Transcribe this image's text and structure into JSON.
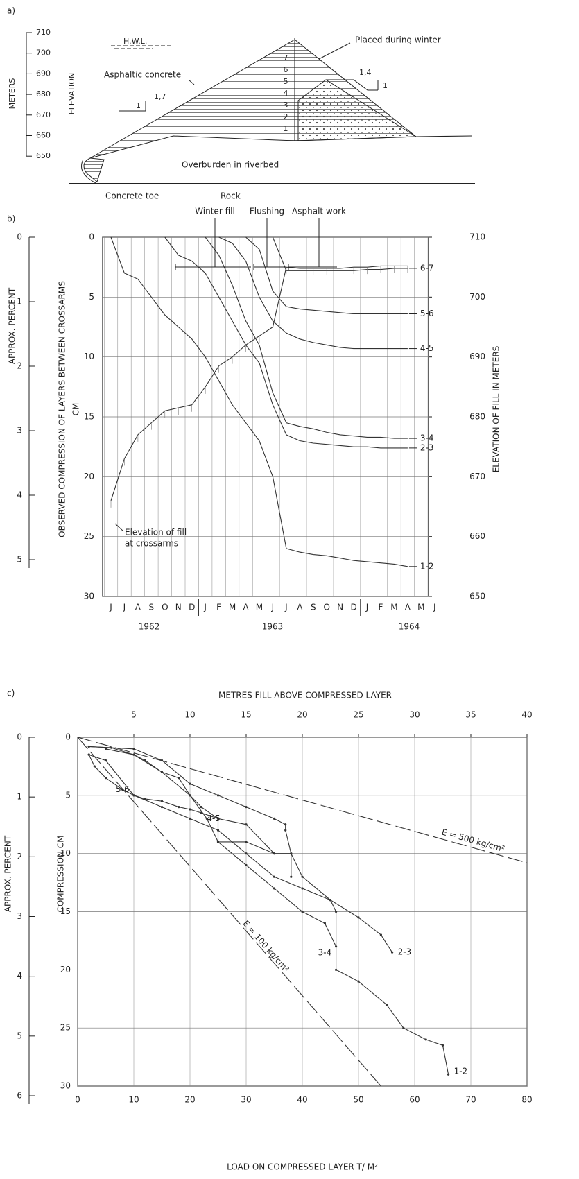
{
  "panel_a": {
    "label": "a)",
    "axis_label_1": "METERS",
    "axis_label_2": "ELEVATION",
    "ticks": [
      710,
      700,
      690,
      680,
      670,
      660,
      650
    ],
    "hwl": "H.W.L.",
    "winter": "Placed during winter",
    "asphalt": "Asphaltic concrete",
    "slope_up": "1,7",
    "slope_up_base": "1",
    "slope_down": "1,4",
    "slope_down_base": "1",
    "layers": [
      "1",
      "2",
      "3",
      "4",
      "5",
      "6",
      "7"
    ],
    "overburden": "Overburden in riverbed",
    "toe": "Concrete toe",
    "rock": "Rock"
  },
  "chart_data": [
    {
      "type": "line",
      "panel_label": "b)",
      "y_label": "OBSERVED COMPRESSION OF LAYERS BETWEEN CROSSARMS",
      "y_unit": "CM",
      "y2_label": "ELEVATION OF FILL IN METERS",
      "percent_axis": {
        "label": "APPROX. PERCENT",
        "lim": [
          0,
          5
        ],
        "ticks": [
          0,
          1,
          2,
          3,
          4,
          5
        ]
      },
      "annotations": [
        "Winter fill",
        "Flushing",
        "Asphalt work",
        "Elevation of fill",
        "at crossarms"
      ],
      "categories": [
        "J",
        "J",
        "A",
        "S",
        "O",
        "N",
        "D",
        "J",
        "F",
        "M",
        "A",
        "M",
        "J",
        "J",
        "A",
        "S",
        "O",
        "N",
        "D",
        "J",
        "F",
        "M",
        "A",
        "M",
        "J"
      ],
      "x_group_labels": [
        "1962",
        "1963",
        "1964"
      ],
      "ylim": [
        0,
        30
      ],
      "yticks": [
        0,
        5,
        10,
        15,
        20,
        25,
        30
      ],
      "y_reversed": true,
      "y2lim": [
        650,
        710
      ],
      "y2ticks": [
        650,
        660,
        670,
        680,
        690,
        700,
        710
      ],
      "grid": true,
      "series": [
        {
          "name": "6-7",
          "color": "#333333",
          "values": [
            null,
            null,
            null,
            null,
            null,
            null,
            null,
            null,
            null,
            null,
            null,
            null,
            0,
            2.8,
            2.8,
            2.8,
            2.8,
            2.8,
            2.8,
            2.7,
            2.7,
            2.6,
            2.6,
            null,
            null
          ]
        },
        {
          "name": "5-6",
          "color": "#333333",
          "values": [
            null,
            null,
            null,
            null,
            null,
            null,
            null,
            null,
            null,
            null,
            0,
            1,
            4.5,
            5.8,
            6,
            6.1,
            6.2,
            6.3,
            6.4,
            6.4,
            6.4,
            6.4,
            6.4,
            null,
            null
          ]
        },
        {
          "name": "4-5",
          "color": "#333333",
          "values": [
            null,
            null,
            null,
            null,
            null,
            null,
            null,
            null,
            0,
            0.5,
            2,
            5,
            7,
            8,
            8.5,
            8.8,
            9,
            9.2,
            9.3,
            9.3,
            9.3,
            9.3,
            9.3,
            null,
            null
          ]
        },
        {
          "name": "3-4",
          "color": "#333333",
          "values": [
            null,
            null,
            null,
            null,
            null,
            null,
            null,
            0,
            1.5,
            4,
            7,
            9,
            13,
            15.5,
            15.8,
            16,
            16.3,
            16.5,
            16.6,
            16.7,
            16.7,
            16.8,
            16.8,
            null,
            null
          ]
        },
        {
          "name": "2-3",
          "color": "#333333",
          "values": [
            null,
            null,
            null,
            null,
            0,
            1.5,
            2,
            3,
            5,
            7,
            9,
            10.5,
            14,
            16.5,
            17,
            17.2,
            17.3,
            17.4,
            17.5,
            17.5,
            17.6,
            17.6,
            17.6,
            null,
            null
          ]
        },
        {
          "name": "1-2",
          "color": "#333333",
          "values": [
            0,
            3,
            3.5,
            5,
            6.5,
            7.5,
            8.5,
            10,
            12,
            14,
            15.5,
            17,
            20,
            26,
            26.3,
            26.5,
            26.6,
            26.8,
            27,
            27.1,
            27.2,
            27.3,
            27.5,
            null,
            null
          ]
        },
        {
          "color": "#333333",
          "axis": "y2",
          "values": [
            666,
            673,
            677,
            679,
            681,
            681.5,
            682,
            685,
            688.5,
            690,
            692,
            693.5,
            695,
            705,
            704.8,
            704.8,
            704.8,
            704.8,
            705,
            705,
            705.2,
            705.2,
            705.2,
            null,
            null
          ]
        }
      ]
    },
    {
      "type": "line",
      "panel_label": "c)",
      "x_label": "LOAD ON COMPRESSED LAYER T/ M²",
      "x2_label": "METRES FILL ABOVE COMPRESSED LAYER",
      "y_label": "COMPRESSION CM",
      "percent_axis": {
        "label": "APPROX. PERCENT",
        "lim": [
          0,
          6
        ],
        "ticks": [
          0,
          1,
          2,
          3,
          4,
          5,
          6
        ]
      },
      "xlim": [
        0,
        80
      ],
      "xticks": [
        0,
        10,
        20,
        30,
        40,
        50,
        60,
        70,
        80
      ],
      "x2lim": [
        0,
        40
      ],
      "x2ticks": [
        5,
        10,
        15,
        20,
        25,
        30,
        35,
        40
      ],
      "ylim": [
        0,
        30
      ],
      "yticks": [
        0,
        5,
        10,
        15,
        20,
        25,
        30
      ],
      "y_reversed": true,
      "grid": true,
      "series": [
        {
          "name": "E = 500 kg/cm²",
          "color": "#333333",
          "dash": true,
          "x": [
            0,
            80
          ],
          "values": [
            0,
            10.8
          ]
        },
        {
          "name": "E = 100 kg/cm²",
          "color": "#333333",
          "dash": true,
          "x": [
            0,
            54
          ],
          "values": [
            0,
            30
          ]
        },
        {
          "name": "5-6",
          "color": "#333333",
          "x": [
            2,
            3,
            5,
            8,
            10,
            12,
            15,
            18,
            20,
            22,
            25,
            25,
            30,
            35
          ],
          "values": [
            1.5,
            2.5,
            3.5,
            4.5,
            5,
            5.3,
            5.5,
            6,
            6.2,
            6.5,
            7,
            9,
            9,
            10
          ]
        },
        {
          "name": "4-5",
          "color": "#333333",
          "x": [
            5,
            10,
            12,
            15,
            18,
            20,
            22,
            25,
            30,
            35,
            38,
            38
          ],
          "values": [
            1,
            1.5,
            2,
            3,
            3.5,
            5,
            6,
            7,
            7.5,
            10,
            10,
            12
          ]
        },
        {
          "name": "3-4",
          "color": "#333333",
          "x": [
            2,
            6,
            10,
            15,
            20,
            23,
            25,
            30,
            35,
            40,
            44,
            46
          ],
          "values": [
            0.8,
            0.9,
            1.5,
            3,
            5,
            7,
            9,
            11,
            13,
            15,
            16,
            18
          ]
        },
        {
          "name": "2-3",
          "color": "#333333",
          "x": [
            2,
            10,
            15,
            20,
            25,
            30,
            35,
            37,
            37,
            38,
            40,
            45,
            50,
            54,
            56
          ],
          "values": [
            0.8,
            1,
            2,
            4,
            5,
            6,
            7,
            7.5,
            8,
            10,
            12,
            14,
            15.5,
            17,
            18.5
          ]
        },
        {
          "name": "1-2",
          "color": "#333333",
          "x": [
            2,
            5,
            10,
            15,
            20,
            25,
            30,
            35,
            40,
            45,
            46,
            46,
            50,
            55,
            58,
            62,
            65,
            66
          ],
          "values": [
            1.5,
            2,
            5,
            6,
            7,
            8,
            10,
            12,
            13,
            14,
            15,
            20,
            21,
            23,
            25,
            26,
            26.5,
            29
          ]
        }
      ]
    }
  ]
}
